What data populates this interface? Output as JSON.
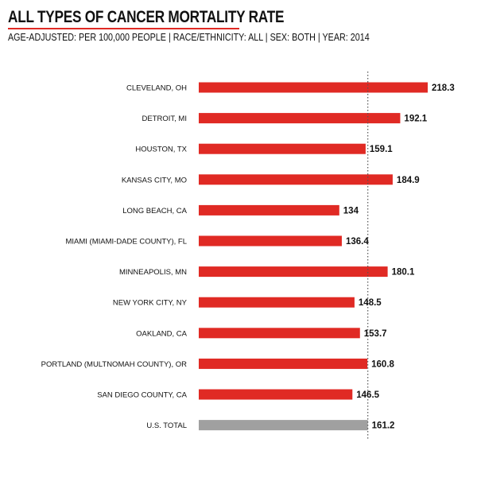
{
  "header": {
    "title": "ALL TYPES OF CANCER MORTALITY RATE",
    "subtitle": "AGE-ADJUSTED: PER 100,000 PEOPLE | RACE/ETHNICITY: ALL | SEX: BOTH | YEAR: 2014"
  },
  "colors": {
    "bar": "#e02a24",
    "total_bar": "#a0a0a0",
    "reference_line": "#555555",
    "accent": "#e02a24"
  },
  "chart_data": {
    "type": "bar",
    "orientation": "horizontal",
    "title": "ALL TYPES OF CANCER MORTALITY RATE",
    "subtitle": "AGE-ADJUSTED: PER 100,000 PEOPLE | RACE/ETHNICITY: ALL | SEX: BOTH | YEAR: 2014",
    "categories": [
      "CLEVELAND, OH",
      "DETROIT, MI",
      "HOUSTON, TX",
      "KANSAS CITY, MO",
      "LONG BEACH, CA",
      "MIAMI (MIAMI-DADE COUNTY), FL",
      "MINNEAPOLIS, MN",
      "NEW YORK CITY, NY",
      "OAKLAND, CA",
      "PORTLAND (MULTNOMAH COUNTY), OR",
      "SAN DIEGO COUNTY, CA",
      "U.S. TOTAL"
    ],
    "values": [
      218.3,
      192.1,
      159.1,
      184.9,
      134,
      136.4,
      180.1,
      148.5,
      153.7,
      160.8,
      146.5,
      161.2
    ],
    "value_labels": [
      "218.3",
      "192.1",
      "159.1",
      "184.9",
      "134",
      "136.4",
      "180.1",
      "148.5",
      "153.7",
      "160.8",
      "146.5",
      "161.2"
    ],
    "highlight_category": "U.S. TOTAL",
    "reference_line_value": 161.2,
    "reference_line_style": "dotted",
    "xlim": [
      0,
      218.3
    ],
    "grid": false,
    "legend": "none"
  }
}
